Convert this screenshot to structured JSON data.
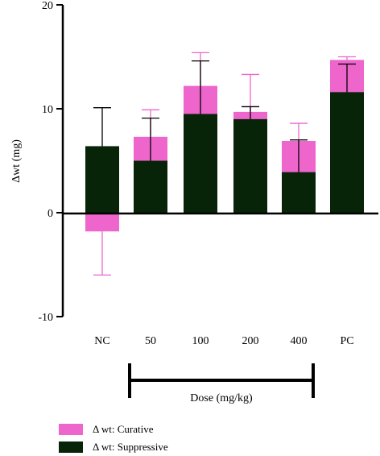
{
  "chart_data": {
    "type": "bar",
    "stacked": false,
    "categories": [
      "NC",
      "50",
      "100",
      "200",
      "400",
      "PC"
    ],
    "xlabel": "Dose (mg/kg)",
    "ylabel": "Δwt (mg)",
    "ylim": [
      -10,
      20
    ],
    "yticks": [
      "20",
      "10",
      "0",
      "-10"
    ],
    "grid": false,
    "legend_position": "bottom-left",
    "series": [
      {
        "name": "Δ wt: Curative",
        "color": "#ee66cc",
        "values": [
          -1.8,
          7.3,
          12.2,
          9.7,
          6.9,
          14.7
        ],
        "errors": [
          4.2,
          2.6,
          3.2,
          3.6,
          1.7,
          0.3
        ],
        "error_color": "#ee66cc"
      },
      {
        "name": "Δ wt: Suppressive",
        "color": "#082408",
        "values": [
          6.4,
          5.0,
          9.5,
          9.0,
          3.9,
          11.6
        ],
        "errors": [
          3.7,
          4.1,
          5.1,
          1.2,
          3.1,
          2.7
        ],
        "error_color": "#000000"
      }
    ],
    "bracket_categories": [
      "50",
      "400"
    ]
  }
}
